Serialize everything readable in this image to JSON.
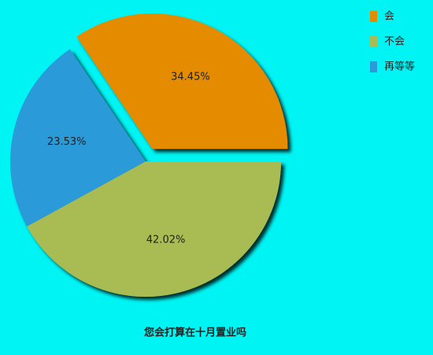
{
  "chart_data": {
    "type": "pie",
    "title": "您会打算在十月置业吗",
    "categories": [
      "会",
      "不会",
      "再等等"
    ],
    "values": [
      34.45,
      42.02,
      23.53
    ],
    "value_labels": [
      "34.45%",
      "42.02%",
      "23.53%"
    ],
    "colors": [
      "#e58b00",
      "#a9bb52",
      "#2a9ad8"
    ],
    "exploded": [
      true,
      false,
      false
    ],
    "legend": "top-right"
  }
}
